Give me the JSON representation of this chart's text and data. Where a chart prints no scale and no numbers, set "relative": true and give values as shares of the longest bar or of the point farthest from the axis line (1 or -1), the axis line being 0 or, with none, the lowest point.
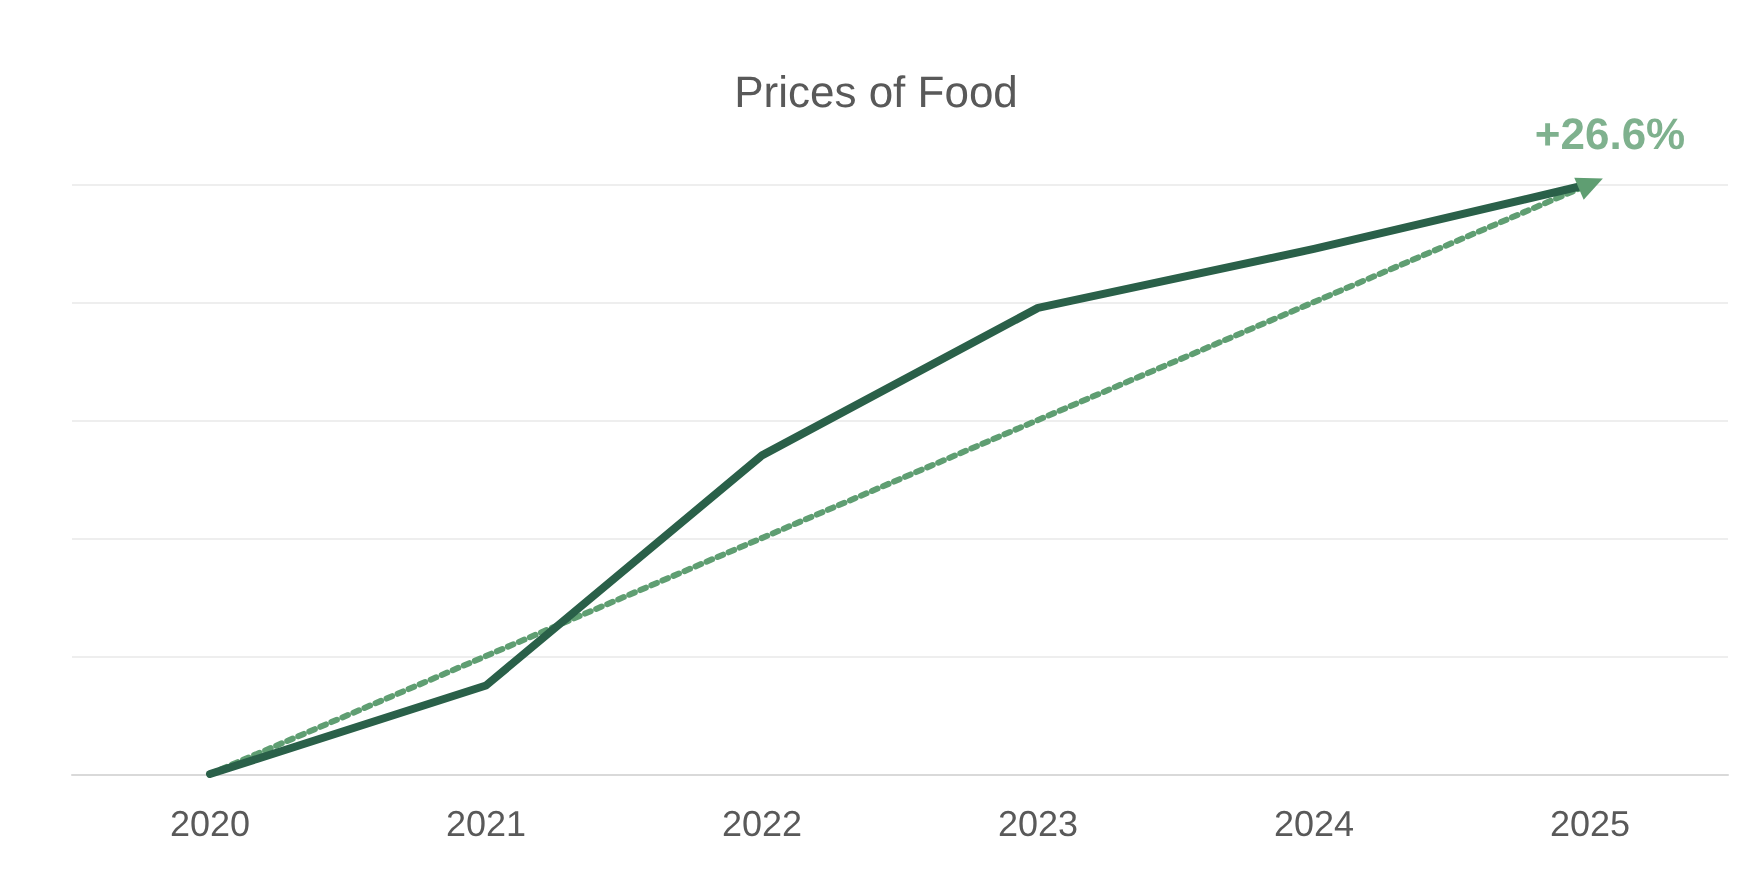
{
  "chart_data": {
    "type": "line",
    "title": "Prices of Food",
    "categories": [
      "2020",
      "2021",
      "2022",
      "2023",
      "2024",
      "2025"
    ],
    "relative": true,
    "grid": "y",
    "marker": "none",
    "series": [
      {
        "color": "#2a6049",
        "values": [
          0,
          0.15,
          0.54,
          0.79,
          0.89,
          1
        ],
        "line_style": "solid"
      },
      {
        "type": "line",
        "color": "#5f9e72",
        "values": [
          0,
          null,
          null,
          null,
          null,
          1
        ],
        "line_style": "dotted",
        "marker": "triangle"
      }
    ],
    "annotations": [
      {
        "text": "+26.6%",
        "x": "2025",
        "y": 1
      }
    ]
  }
}
